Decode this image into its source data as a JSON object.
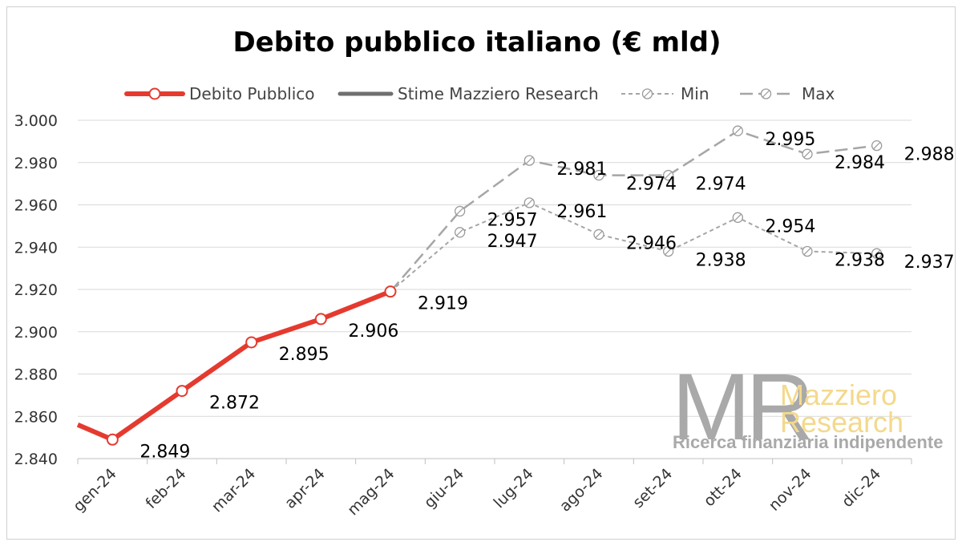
{
  "chart_data": {
    "type": "line",
    "title": "Debito pubblico italiano (€ mld)",
    "categories": [
      "gen-24",
      "feb-24",
      "mar-24",
      "apr-24",
      "mag-24",
      "giu-24",
      "lug-24",
      "ago-24",
      "set-24",
      "ott-24",
      "nov-24",
      "dic-24"
    ],
    "y_ticks": [
      "2.840",
      "2.860",
      "2.880",
      "2.900",
      "2.920",
      "2.940",
      "2.960",
      "2.980",
      "3.000"
    ],
    "ylim": [
      2840,
      3000
    ],
    "grid": true,
    "legend_position": "top",
    "prev_period_value": 2856,
    "series": [
      {
        "name": "Debito Pubblico",
        "color": "#e53a2f",
        "style": "solid-thick",
        "values": [
          2849,
          2872,
          2895,
          2906,
          2919,
          null,
          null,
          null,
          null,
          null,
          null,
          null
        ],
        "labels": [
          "2.849",
          "2.872",
          "2.895",
          "2.906",
          "2.919",
          "",
          "",
          "",
          "",
          "",
          "",
          ""
        ]
      },
      {
        "name": "Stime Mazziero Research",
        "color": "#6f6f6f",
        "style": "solid",
        "values": [
          null,
          null,
          null,
          null,
          null,
          null,
          null,
          null,
          null,
          null,
          null,
          null
        ],
        "labels": [
          "",
          "",
          "",
          "",
          "",
          "",
          "",
          "",
          "",
          "",
          "",
          ""
        ]
      },
      {
        "name": "Min",
        "color": "#a6a6a6",
        "style": "dotted",
        "values": [
          null,
          null,
          null,
          null,
          2919,
          2947,
          2961,
          2946,
          2938,
          2954,
          2938,
          2937
        ],
        "labels": [
          "",
          "",
          "",
          "",
          "",
          "2.947",
          "2.961",
          "2.946",
          "2.938",
          "2.954",
          "2.938",
          "2.937"
        ]
      },
      {
        "name": "Max",
        "color": "#a6a6a6",
        "style": "dashed",
        "values": [
          null,
          null,
          null,
          null,
          2919,
          2957,
          2981,
          2974,
          2974,
          2995,
          2984,
          2988
        ],
        "labels": [
          "",
          "",
          "",
          "",
          "",
          "2.957",
          "2.981",
          "2.974",
          "2.974",
          "2.995",
          "2.984",
          "2.988"
        ]
      }
    ]
  },
  "logo": {
    "mark": "MR",
    "name_line1": "Mazziero",
    "name_line2": "Research",
    "tagline": "Ricerca finanziaria indipendente"
  }
}
